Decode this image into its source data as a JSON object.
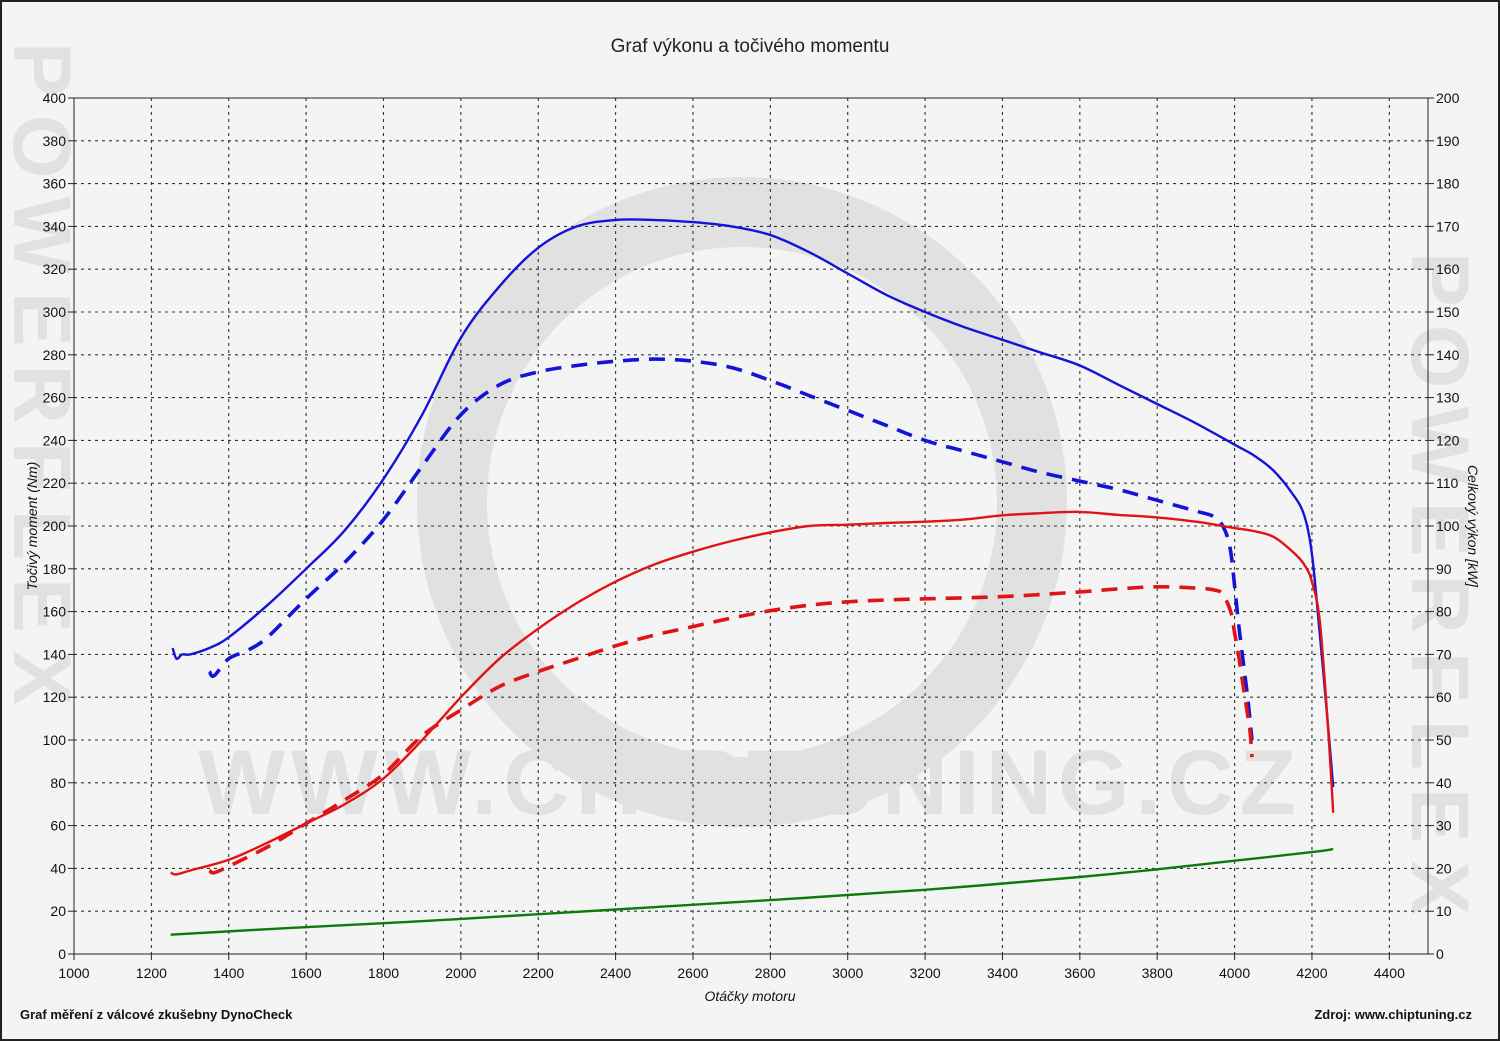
{
  "title": "Graf výkonu a točivého momentu",
  "footer": {
    "left": "Graf měření z válcové zkušebny DynoCheck",
    "right": "Zdroj: www.chiptuning.cz"
  },
  "watermark": {
    "url": "WWW.CHIPTUNING.CZ",
    "side": "POWERFLEX"
  },
  "chart_data": {
    "type": "line",
    "title": "Graf výkonu a točivého momentu",
    "xlabel": "Otáčky motoru",
    "ylabel": "Točivý moment (Nm)",
    "y2label": "Celkový výkon [kW]",
    "xlim": [
      1000,
      4500
    ],
    "ylim": [
      0,
      400
    ],
    "y2lim": [
      0,
      200
    ],
    "x_ticks": [
      1000,
      1200,
      1400,
      1600,
      1800,
      2000,
      2200,
      2400,
      2600,
      2800,
      3000,
      3200,
      3400,
      3600,
      3800,
      4000,
      4200,
      4400
    ],
    "y_ticks": [
      0,
      20,
      40,
      60,
      80,
      100,
      120,
      140,
      160,
      180,
      200,
      220,
      240,
      260,
      280,
      300,
      320,
      340,
      360,
      380,
      400
    ],
    "y2_ticks": [
      0,
      10,
      20,
      30,
      40,
      50,
      60,
      70,
      80,
      90,
      100,
      110,
      120,
      130,
      140,
      150,
      160,
      170,
      180,
      190,
      200
    ],
    "grid": true,
    "legend": "none",
    "series": [
      {
        "axis": "left",
        "color": "#1414d8",
        "style": "solid",
        "x": [
          1255,
          1265,
          1280,
          1300,
          1350,
          1400,
          1500,
          1600,
          1700,
          1800,
          1900,
          2000,
          2100,
          2200,
          2300,
          2400,
          2500,
          2600,
          2700,
          2800,
          2900,
          3000,
          3100,
          3200,
          3300,
          3400,
          3500,
          3600,
          3700,
          3800,
          3900,
          4000,
          4050,
          4100,
          4150,
          4180,
          4200,
          4220,
          4240,
          4255
        ],
        "y": [
          143,
          138,
          140,
          140,
          143,
          148,
          163,
          180,
          198,
          222,
          252,
          288,
          312,
          330,
          340,
          343,
          343,
          342,
          340,
          336,
          328,
          318,
          308,
          300,
          293,
          287,
          281,
          275,
          266,
          257,
          248,
          238,
          233,
          226,
          215,
          205,
          187,
          150,
          110,
          78
        ]
      },
      {
        "axis": "left",
        "color": "#1414d8",
        "style": "dashed",
        "x": [
          1350,
          1362,
          1400,
          1450,
          1500,
          1600,
          1700,
          1800,
          1900,
          2000,
          2100,
          2200,
          2300,
          2400,
          2500,
          2600,
          2700,
          2800,
          2900,
          3000,
          3100,
          3200,
          3300,
          3400,
          3500,
          3600,
          3700,
          3800,
          3900,
          3950,
          3975,
          3990,
          4000,
          4010,
          4020,
          4035,
          4045
        ],
        "y": [
          132,
          130,
          138,
          142,
          148,
          166,
          183,
          203,
          228,
          252,
          266,
          272,
          275,
          277,
          278,
          277,
          274,
          268,
          261,
          254,
          247,
          240,
          235,
          230,
          225,
          221,
          217,
          212,
          207,
          204,
          198,
          188,
          172,
          155,
          140,
          118,
          100
        ]
      },
      {
        "axis": "right",
        "color": "#e01414",
        "style": "solid",
        "x": [
          1250,
          1265,
          1300,
          1400,
          1500,
          1600,
          1700,
          1800,
          1900,
          2000,
          2100,
          2200,
          2300,
          2400,
          2500,
          2600,
          2700,
          2800,
          2900,
          3000,
          3100,
          3200,
          3300,
          3400,
          3500,
          3600,
          3700,
          3800,
          3900,
          3950,
          4000,
          4050,
          4100,
          4150,
          4180,
          4200,
          4220,
          4240,
          4255
        ],
        "y": [
          19,
          18.6,
          19.5,
          22,
          26,
          30.5,
          35,
          41,
          50,
          60,
          69,
          76,
          82,
          87,
          91,
          94,
          96.5,
          98.5,
          100,
          100.3,
          100.7,
          101,
          101.5,
          102.5,
          103,
          103.3,
          102.6,
          102,
          101,
          100.3,
          99.5,
          98.8,
          97.5,
          94,
          91,
          87,
          78,
          55,
          33
        ]
      },
      {
        "axis": "right",
        "color": "#e01414",
        "style": "dashed",
        "x": [
          1350,
          1362,
          1400,
          1500,
          1600,
          1700,
          1800,
          1900,
          2000,
          2100,
          2200,
          2300,
          2400,
          2500,
          2600,
          2700,
          2800,
          2900,
          3000,
          3100,
          3200,
          3300,
          3400,
          3500,
          3600,
          3700,
          3800,
          3900,
          3950,
          3970,
          3990,
          4000,
          4010,
          4020,
          4030,
          4040,
          4045
        ],
        "y": [
          19.5,
          19,
          20.5,
          25,
          30.5,
          36,
          42,
          51,
          57,
          62.5,
          66,
          69,
          72,
          74.5,
          76.5,
          78.5,
          80.2,
          81.5,
          82.3,
          82.7,
          83,
          83.2,
          83.5,
          84,
          84.6,
          85.3,
          85.8,
          85.5,
          85,
          84,
          80,
          75,
          70,
          64,
          58,
          52,
          46
        ]
      },
      {
        "axis": "right",
        "color": "#0e7a0e",
        "style": "solid",
        "x": [
          1250,
          1500,
          1800,
          2000,
          2400,
          2800,
          3200,
          3600,
          3800,
          4000,
          4200,
          4255
        ],
        "y": [
          4.5,
          5.8,
          7.2,
          8.2,
          10.4,
          12.6,
          15,
          18,
          19.8,
          21.8,
          23.8,
          24.5
        ]
      }
    ]
  }
}
